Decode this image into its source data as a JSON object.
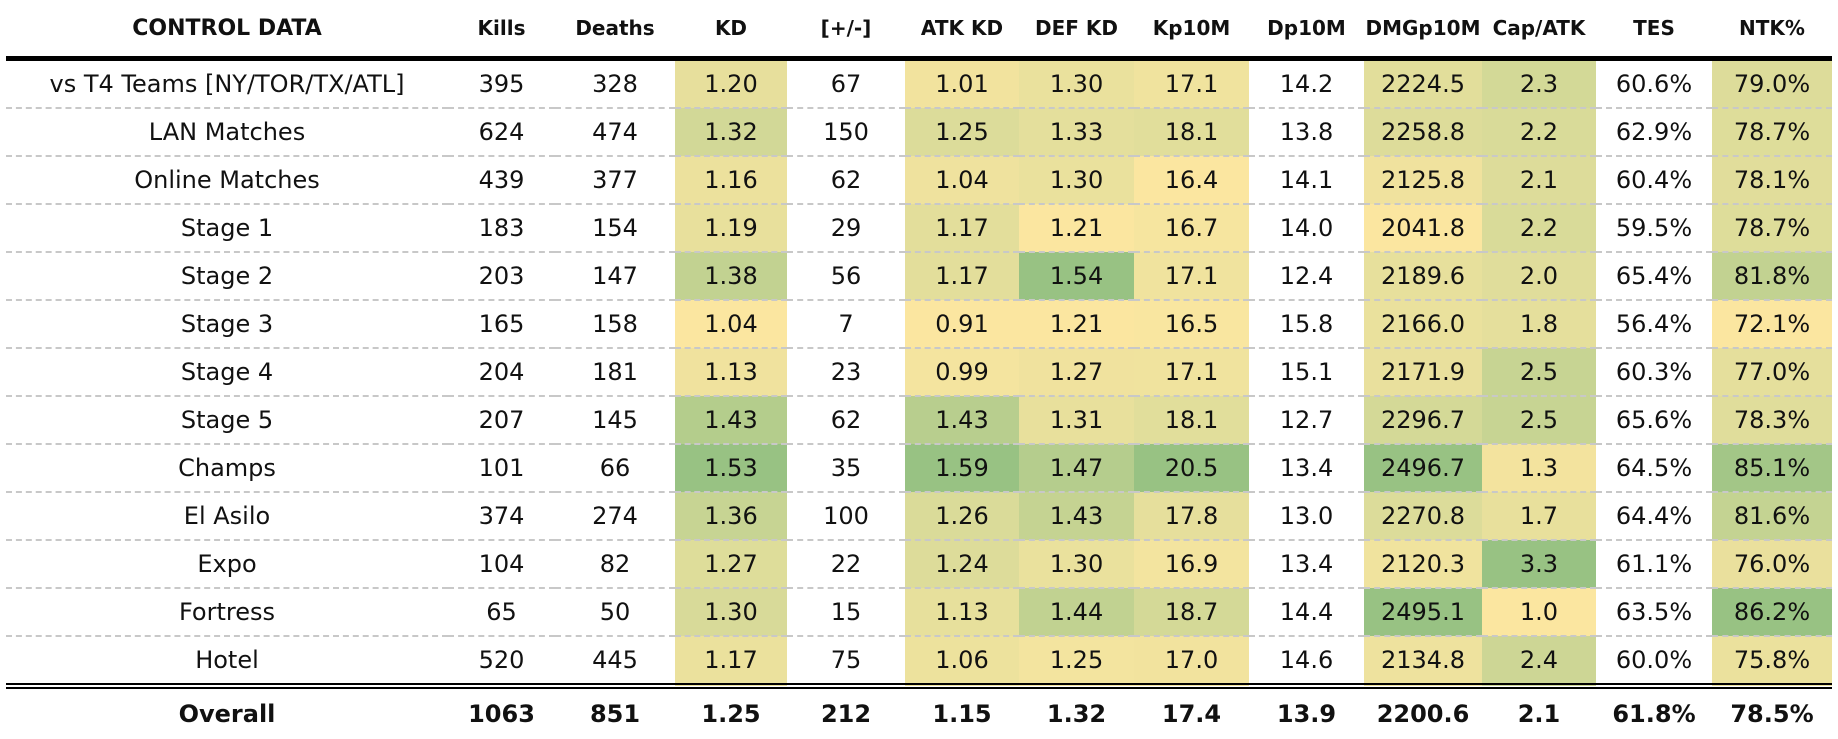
{
  "title": "CONTROL DATA",
  "columns": [
    "Kills",
    "Deaths",
    "KD",
    "[+/-]",
    "ATK KD",
    "DEF KD",
    "Kp10M",
    "Dp10M",
    "DMGp10M",
    "Cap/ATK",
    "TES",
    "NTK%"
  ],
  "colored_columns": [
    2,
    4,
    5,
    6,
    8,
    9,
    11
  ],
  "color_scale": {
    "low": "#fbe6a0",
    "mid": "#dcdc9a",
    "high": "#98c283"
  },
  "rows": [
    {
      "label": "vs T4 Teams [NY/TOR/TX/ATL]",
      "values": [
        "395",
        "328",
        "1.20",
        "67",
        "1.01",
        "1.30",
        "17.1",
        "14.2",
        "2224.5",
        "2.3",
        "60.6%",
        "79.0%"
      ]
    },
    {
      "label": "LAN Matches",
      "values": [
        "624",
        "474",
        "1.32",
        "150",
        "1.25",
        "1.33",
        "18.1",
        "13.8",
        "2258.8",
        "2.2",
        "62.9%",
        "78.7%"
      ]
    },
    {
      "label": "Online Matches",
      "values": [
        "439",
        "377",
        "1.16",
        "62",
        "1.04",
        "1.30",
        "16.4",
        "14.1",
        "2125.8",
        "2.1",
        "60.4%",
        "78.1%"
      ]
    },
    {
      "label": "Stage 1",
      "values": [
        "183",
        "154",
        "1.19",
        "29",
        "1.17",
        "1.21",
        "16.7",
        "14.0",
        "2041.8",
        "2.2",
        "59.5%",
        "78.7%"
      ]
    },
    {
      "label": "Stage 2",
      "values": [
        "203",
        "147",
        "1.38",
        "56",
        "1.17",
        "1.54",
        "17.1",
        "12.4",
        "2189.6",
        "2.0",
        "65.4%",
        "81.8%"
      ]
    },
    {
      "label": "Stage 3",
      "values": [
        "165",
        "158",
        "1.04",
        "7",
        "0.91",
        "1.21",
        "16.5",
        "15.8",
        "2166.0",
        "1.8",
        "56.4%",
        "72.1%"
      ]
    },
    {
      "label": "Stage 4",
      "values": [
        "204",
        "181",
        "1.13",
        "23",
        "0.99",
        "1.27",
        "17.1",
        "15.1",
        "2171.9",
        "2.5",
        "60.3%",
        "77.0%"
      ]
    },
    {
      "label": "Stage 5",
      "values": [
        "207",
        "145",
        "1.43",
        "62",
        "1.43",
        "1.31",
        "18.1",
        "12.7",
        "2296.7",
        "2.5",
        "65.6%",
        "78.3%"
      ]
    },
    {
      "label": "Champs",
      "values": [
        "101",
        "66",
        "1.53",
        "35",
        "1.59",
        "1.47",
        "20.5",
        "13.4",
        "2496.7",
        "1.3",
        "64.5%",
        "85.1%"
      ]
    },
    {
      "label": "El Asilo",
      "values": [
        "374",
        "274",
        "1.36",
        "100",
        "1.26",
        "1.43",
        "17.8",
        "13.0",
        "2270.8",
        "1.7",
        "64.4%",
        "81.6%"
      ]
    },
    {
      "label": "Expo",
      "values": [
        "104",
        "82",
        "1.27",
        "22",
        "1.24",
        "1.30",
        "16.9",
        "13.4",
        "2120.3",
        "3.3",
        "61.1%",
        "76.0%"
      ]
    },
    {
      "label": "Fortress",
      "values": [
        "65",
        "50",
        "1.30",
        "15",
        "1.13",
        "1.44",
        "18.7",
        "14.4",
        "2495.1",
        "1.0",
        "63.5%",
        "86.2%"
      ]
    },
    {
      "label": "Hotel",
      "values": [
        "520",
        "445",
        "1.17",
        "75",
        "1.06",
        "1.25",
        "17.0",
        "14.6",
        "2134.8",
        "2.4",
        "60.0%",
        "75.8%"
      ]
    }
  ],
  "overall": {
    "label": "Overall",
    "values": [
      "1063",
      "851",
      "1.25",
      "212",
      "1.15",
      "1.32",
      "17.4",
      "13.9",
      "2200.6",
      "2.1",
      "61.8%",
      "78.5%"
    ]
  }
}
